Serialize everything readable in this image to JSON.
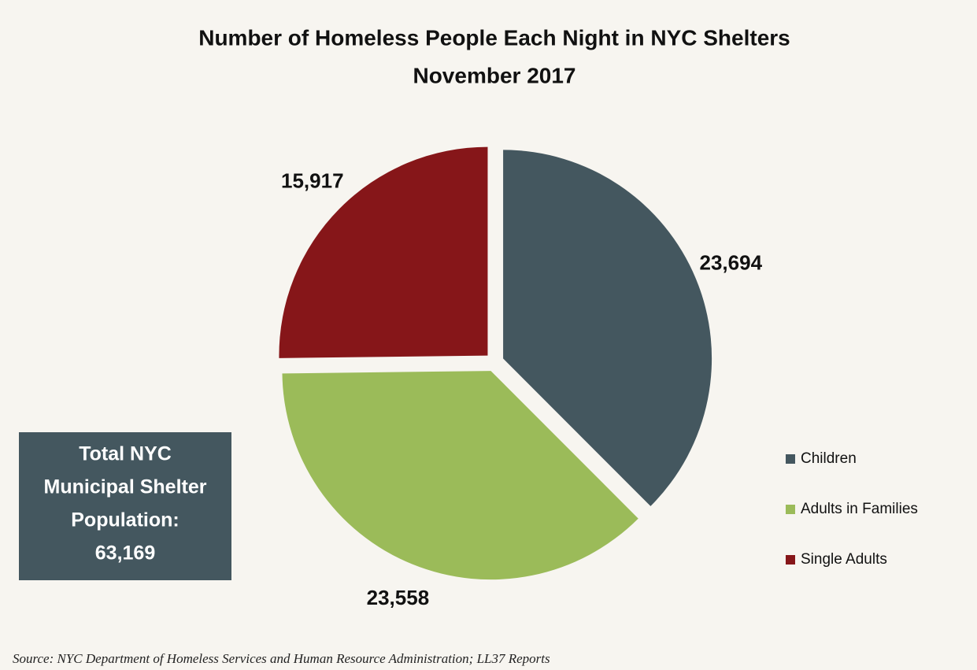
{
  "chart_data": {
    "type": "pie",
    "title": "Number of Homeless People Each Night in NYC Shelters",
    "subtitle": "November 2017",
    "categories": [
      "Children",
      "Adults in Families",
      "Single Adults"
    ],
    "values": [
      23694,
      23558,
      15917
    ],
    "value_labels": [
      "23,694",
      "23,558",
      "15,917"
    ],
    "colors": [
      "#44575f",
      "#9bbb59",
      "#861619"
    ],
    "legend": "right",
    "annotation": {
      "lines": [
        "Total NYC",
        "Municipal Shelter",
        "Population:",
        "63,169"
      ]
    },
    "source": "Source:  NYC Department of Homeless Services and Human Resource Administration; LL37 Reports"
  }
}
